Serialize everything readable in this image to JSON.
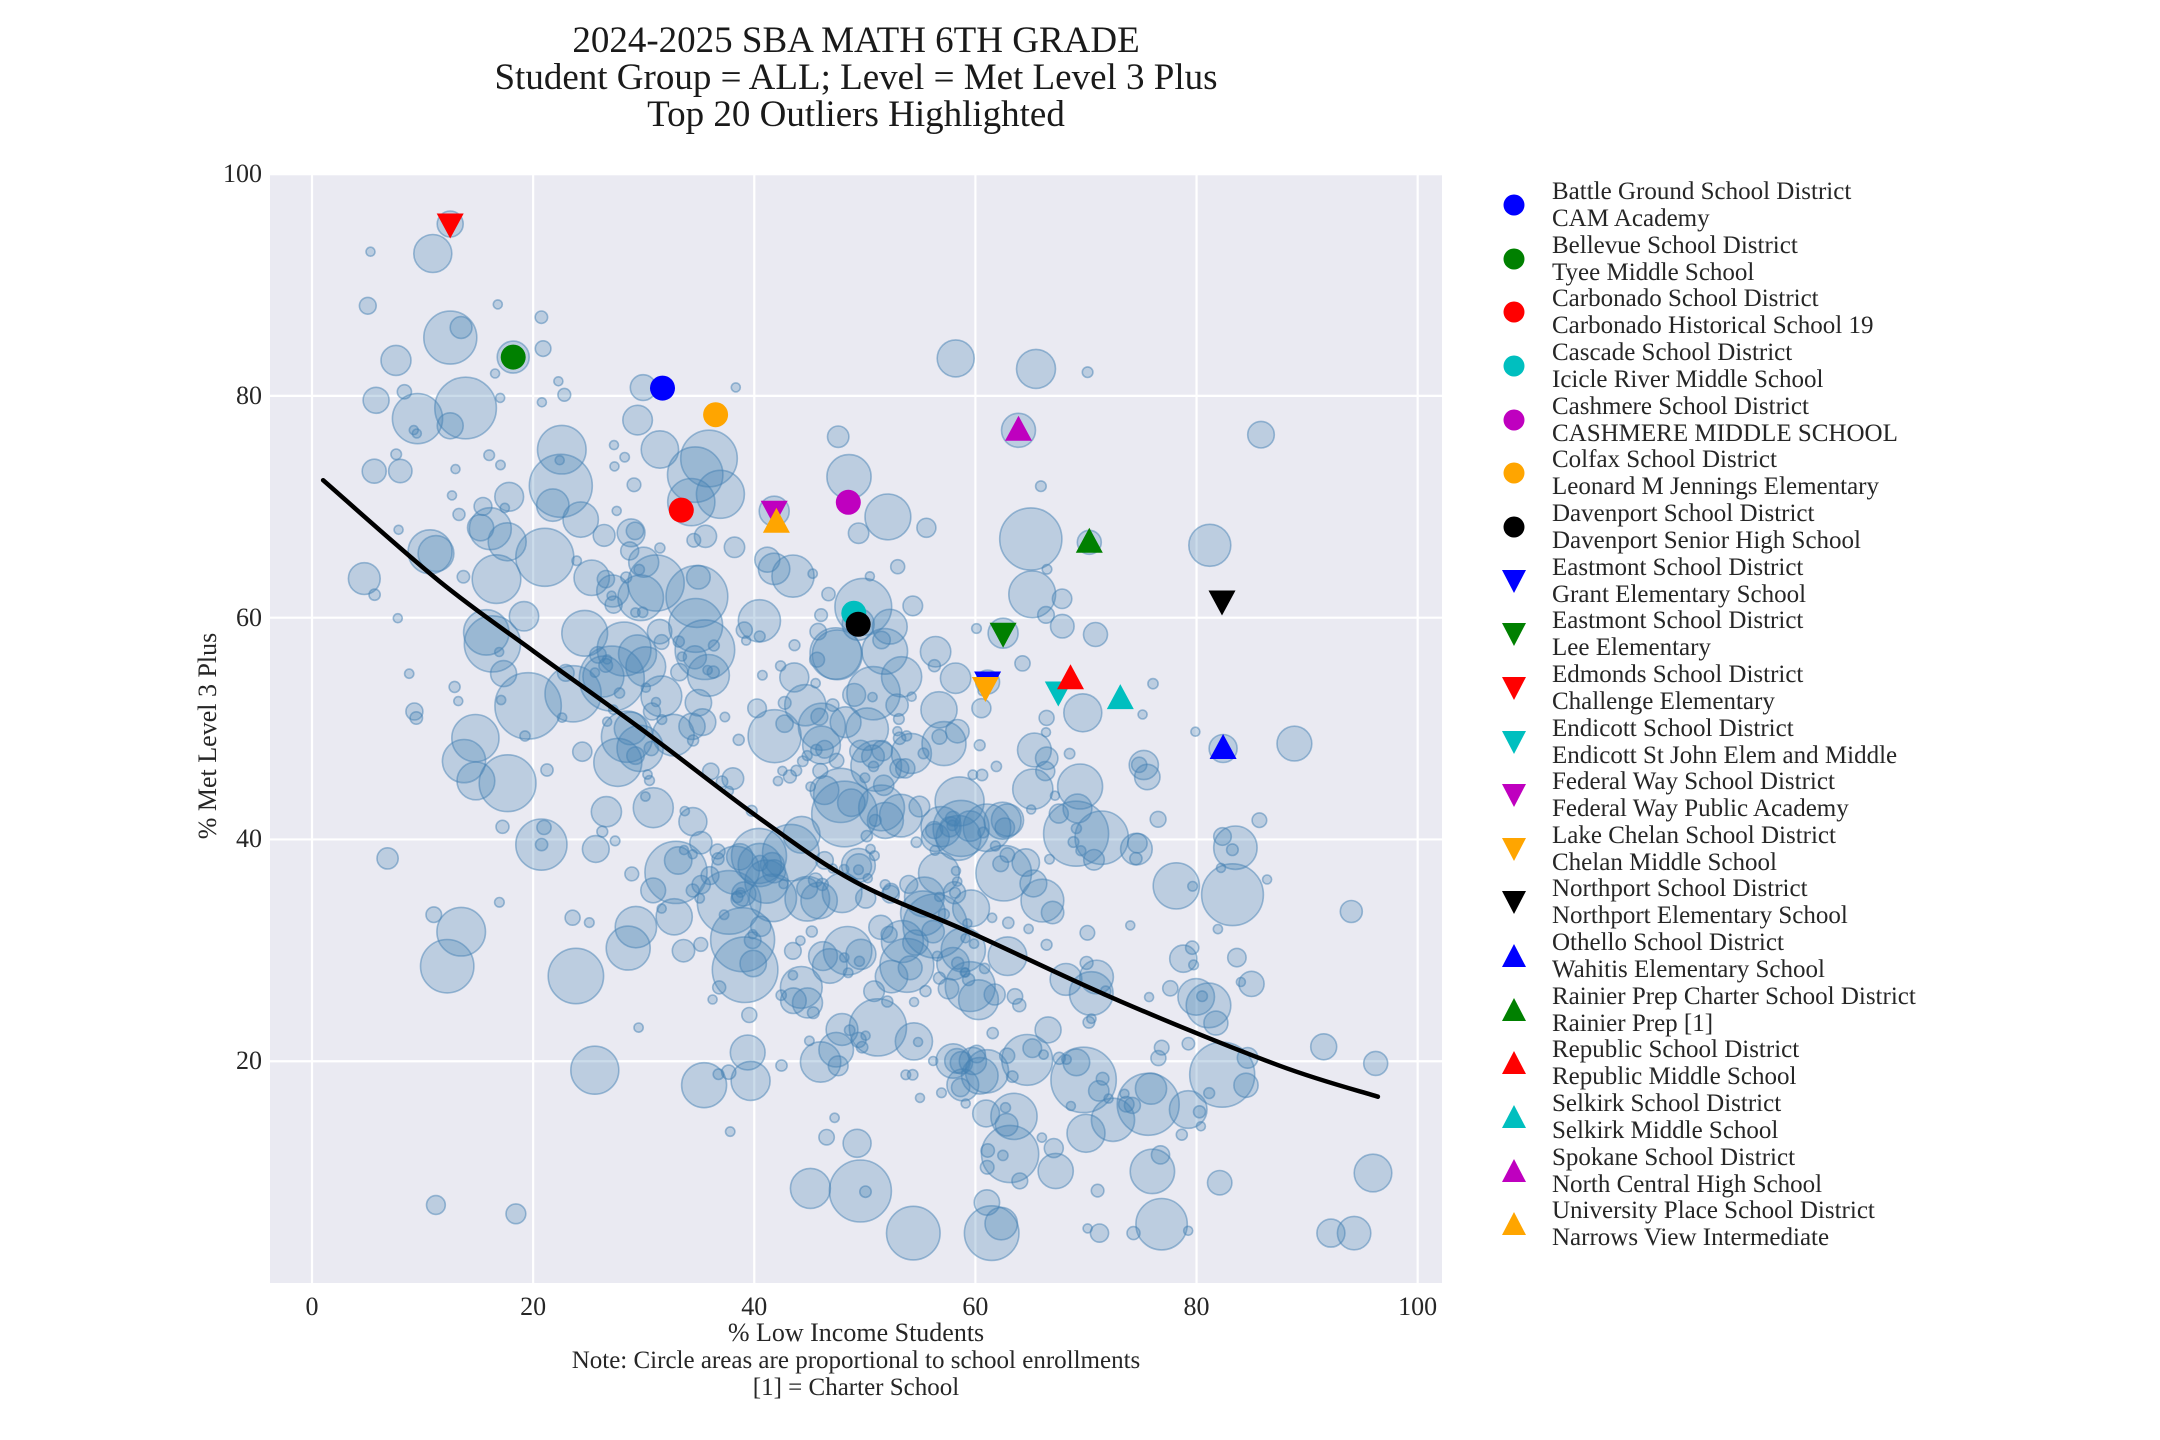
{
  "title": {
    "line1": "2024-2025 SBA MATH 6TH GRADE",
    "line2": "Student Group = ALL; Level = Met Level 3 Plus",
    "line3": "Top 20 Outliers Highlighted"
  },
  "colors": {
    "figure_bg": "#ffffff",
    "plot_bg": "#eaeaf2",
    "grid": "#ffffff",
    "trend": "#000000",
    "bubble": "#4682b4",
    "text": "#262626"
  },
  "chart_data": {
    "type": "scatter",
    "title": "2024-2025 SBA MATH 6TH GRADE\nStudent Group = ALL; Level = Met Level 3 Plus\nTop 20 Outliers Highlighted",
    "xlabel": "% Low Income Students",
    "ylabel": "% Met Level 3 Plus",
    "notes": [
      "Note: Circle areas are proportional to school enrollments",
      "[1] = Charter School"
    ],
    "xlim": [
      -3.8,
      102.2
    ],
    "ylim": [
      0,
      100.1
    ],
    "xticks": [
      0,
      20,
      40,
      60,
      80,
      100
    ],
    "yticks": [
      20,
      40,
      60,
      80,
      100
    ],
    "grid": true,
    "legend_position": "right",
    "trend_line": {
      "color": "#000000",
      "points": [
        [
          1,
          72.4
        ],
        [
          11.5,
          63.3
        ],
        [
          20,
          57.0
        ],
        [
          30,
          49.8
        ],
        [
          40.5,
          41.9
        ],
        [
          49.1,
          36.2
        ],
        [
          60,
          31.4
        ],
        [
          73.1,
          25.4
        ],
        [
          87.5,
          19.6
        ],
        [
          96.4,
          16.8
        ]
      ]
    },
    "outliers": [
      {
        "district": "Battle Ground School District",
        "school": "CAM Academy",
        "marker": "circle",
        "color": "#0000ff",
        "x": 31.7,
        "y": 80.7,
        "halo_r": 0
      },
      {
        "district": "Bellevue School District",
        "school": "Tyee Middle School",
        "marker": "circle",
        "color": "#008000",
        "x": 18.2,
        "y": 83.5,
        "halo_r": 16
      },
      {
        "district": "Carbonado School District",
        "school": "Carbonado Historical School 19",
        "marker": "circle",
        "color": "#ff0000",
        "x": 33.4,
        "y": 69.7,
        "halo_r": 0
      },
      {
        "district": "Cascade School District",
        "school": "Icicle River Middle School",
        "marker": "circle",
        "color": "#00bfbf",
        "x": 49.0,
        "y": 60.4,
        "halo_r": 0
      },
      {
        "district": "Cashmere School District",
        "school": "CASHMERE MIDDLE SCHOOL",
        "marker": "circle",
        "color": "#bf00bf",
        "x": 48.5,
        "y": 70.4,
        "halo_r": 0
      },
      {
        "district": "Colfax School District",
        "school": "Leonard M Jennings Elementary",
        "marker": "circle",
        "color": "#ffa500",
        "x": 36.5,
        "y": 78.3,
        "halo_r": 0
      },
      {
        "district": "Davenport School District",
        "school": "Davenport Senior High School",
        "marker": "circle",
        "color": "#000000",
        "x": 49.4,
        "y": 59.4,
        "halo_r": 16
      },
      {
        "district": "Eastmont School District",
        "school": "Grant Elementary School",
        "marker": "triangle-down",
        "color": "#0000ff",
        "x": 61.1,
        "y": 54.2,
        "halo_r": 12
      },
      {
        "district": "Eastmont School District",
        "school": "Lee Elementary",
        "marker": "triangle-down",
        "color": "#008000",
        "x": 62.5,
        "y": 58.6,
        "halo_r": 15
      },
      {
        "district": "Edmonds School District",
        "school": "Challenge Elementary",
        "marker": "triangle-down",
        "color": "#ff0000",
        "x": 12.5,
        "y": 95.5,
        "halo_r": 13
      },
      {
        "district": "Endicott School District",
        "school": "Endicott St John Elem and Middle",
        "marker": "triangle-down",
        "color": "#00bfbf",
        "x": 67.5,
        "y": 53.3,
        "halo_r": 0
      },
      {
        "district": "Federal Way School District",
        "school": "Federal Way Public Academy",
        "marker": "triangle-down",
        "color": "#bf00bf",
        "x": 41.8,
        "y": 69.6,
        "halo_r": 15
      },
      {
        "district": "Lake Chelan School District",
        "school": "Chelan Middle School",
        "marker": "triangle-down",
        "color": "#ffa500",
        "x": 60.9,
        "y": 53.7,
        "halo_r": 0
      },
      {
        "district": "Northport School District",
        "school": "Northport Elementary School",
        "marker": "triangle-down",
        "color": "#000000",
        "x": 82.3,
        "y": 61.5,
        "halo_r": 0
      },
      {
        "district": "Othello School District",
        "school": "Wahitis Elementary School",
        "marker": "triangle-up",
        "color": "#0000ff",
        "x": 82.4,
        "y": 48.2,
        "halo_r": 14
      },
      {
        "district": "Rainier Prep Charter School District",
        "school": "Rainier Prep [1]",
        "marker": "triangle-up",
        "color": "#008000",
        "x": 70.3,
        "y": 66.8,
        "halo_r": 12
      },
      {
        "district": "Republic School District",
        "school": "Republic Middle School",
        "marker": "triangle-up",
        "color": "#ff0000",
        "x": 68.6,
        "y": 54.5,
        "halo_r": 0
      },
      {
        "district": "Selkirk School District",
        "school": "Selkirk Middle School",
        "marker": "triangle-up",
        "color": "#00bfbf",
        "x": 73.1,
        "y": 52.7,
        "halo_r": 0
      },
      {
        "district": "Spokane School District",
        "school": "North Central High School",
        "marker": "triangle-up",
        "color": "#bf00bf",
        "x": 63.9,
        "y": 76.9,
        "halo_r": 17
      },
      {
        "district": "University Place School District",
        "school": "Narrows View Intermediate",
        "marker": "triangle-up",
        "color": "#ffa500",
        "x": 42.0,
        "y": 68.6,
        "halo_r": 0
      }
    ],
    "background_bubbles": {
      "description": "unlabeled schools; circle area proportional to enrollment",
      "count": 600,
      "seed": 20250607,
      "fill_opacity": 0.28,
      "stroke_opacity": 0.5,
      "features": [
        [
          49.6,
          8.3,
          31
        ],
        [
          28.6,
          30.2,
          22
        ],
        [
          53.4,
          30.8,
          21
        ],
        [
          70.0,
          13.5,
          19
        ],
        [
          91.5,
          21.3,
          13
        ],
        [
          96.2,
          19.8,
          12
        ],
        [
          7.6,
          83.2,
          15
        ],
        [
          5.8,
          79.6,
          13
        ],
        [
          12.5,
          77.3,
          13
        ],
        [
          30.0,
          65.0,
          15
        ],
        [
          94.0,
          33.5,
          11
        ],
        [
          49.3,
          12.6,
          14
        ]
      ]
    }
  },
  "legend": {
    "marker_shapes": [
      "circle",
      "triangle-down",
      "triangle-up"
    ]
  }
}
